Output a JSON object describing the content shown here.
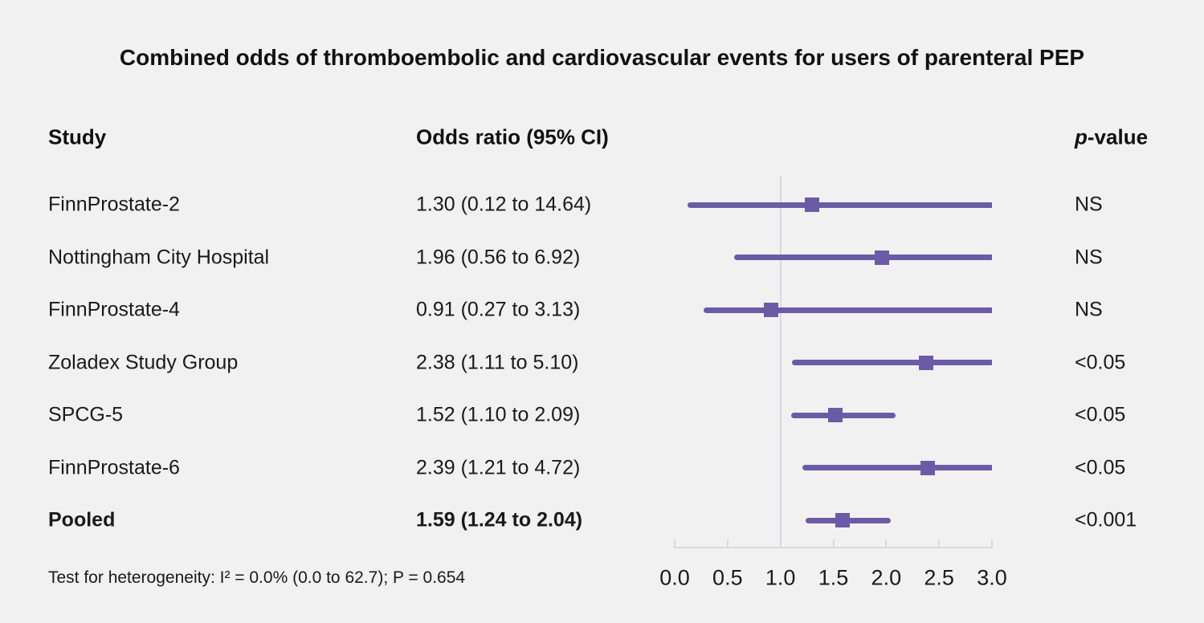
{
  "chart_data": {
    "type": "forest",
    "title": "Combined odds of thromboembolic and cardiovascular events for users of parenteral PEP",
    "columns": {
      "study": "Study",
      "odds_ratio": "Odds ratio (95% CI)",
      "p_italic": "p",
      "p_rest": "-value"
    },
    "rows": [
      {
        "study": "FinnProstate-2",
        "or": 1.3,
        "ci_low": 0.12,
        "ci_high": 14.64,
        "or_text": "1.30 (0.12 to 14.64)",
        "p": "NS",
        "bold": false
      },
      {
        "study": "Nottingham City Hospital",
        "or": 1.96,
        "ci_low": 0.56,
        "ci_high": 6.92,
        "or_text": "1.96 (0.56 to 6.92)",
        "p": "NS",
        "bold": false
      },
      {
        "study": "FinnProstate-4",
        "or": 0.91,
        "ci_low": 0.27,
        "ci_high": 3.13,
        "or_text": "0.91 (0.27 to 3.13)",
        "p": "NS",
        "bold": false
      },
      {
        "study": "Zoladex Study Group",
        "or": 2.38,
        "ci_low": 1.11,
        "ci_high": 5.1,
        "or_text": "2.38 (1.11 to 5.10)",
        "p": "<0.05",
        "bold": false
      },
      {
        "study": "SPCG-5",
        "or": 1.52,
        "ci_low": 1.1,
        "ci_high": 2.09,
        "or_text": "1.52 (1.10 to 2.09)",
        "p": "<0.05",
        "bold": false
      },
      {
        "study": "FinnProstate-6",
        "or": 2.39,
        "ci_low": 1.21,
        "ci_high": 4.72,
        "or_text": "2.39 (1.21 to 4.72)",
        "p": "<0.05",
        "bold": false
      },
      {
        "study": "Pooled",
        "or": 1.59,
        "ci_low": 1.24,
        "ci_high": 2.04,
        "or_text": "1.59 (1.24 to 2.04)",
        "p": "<0.001",
        "bold": true
      }
    ],
    "axis": {
      "min": 0.0,
      "max": 3.0,
      "reference_line": 1.0,
      "ticks": [
        {
          "value": 0.0,
          "label": "0.0"
        },
        {
          "value": 0.5,
          "label": "0.5"
        },
        {
          "value": 1.0,
          "label": "1.0"
        },
        {
          "value": 1.5,
          "label": "1.5"
        },
        {
          "value": 2.0,
          "label": "2.0"
        },
        {
          "value": 2.5,
          "label": "2.5"
        },
        {
          "value": 3.0,
          "label": "3.0"
        }
      ]
    },
    "footnote": "Test for heterogeneity: I² = 0.0% (0.0 to 62.7); P = 0.654",
    "colors": {
      "marker": "#6b5ba6",
      "axis": "#d6dadf",
      "background": "#f2f1f1",
      "text": "#1a1a1a"
    }
  }
}
